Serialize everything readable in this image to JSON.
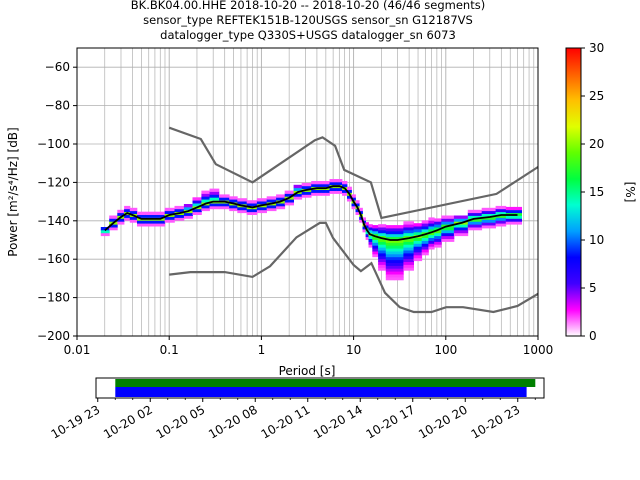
{
  "title_lines": [
    "BK.BK04.00.HHE   2018-10-20 -- 2018-10-20  (46/46 segments)",
    "sensor_type REFTEK151B-120USGS sensor_sn G12187VS",
    "datalogger_type Q330S+USGS datalogger_sn 6073"
  ],
  "chart_data": [
    {
      "type": "heatmap",
      "x_scale": "log",
      "xlabel": "Period [s]",
      "ylabel": "Power [m²/s⁴/Hz] [dB]",
      "xlim": [
        0.01,
        1000
      ],
      "ylim": [
        -200,
        -50
      ],
      "x_ticks": [
        0.01,
        0.1,
        1,
        10,
        100,
        1000
      ],
      "x_tick_labels": [
        "0.01",
        "0.1",
        "1",
        "10",
        "100",
        "1000"
      ],
      "y_ticks": [
        -200,
        -180,
        -160,
        -140,
        -120,
        -100,
        -80,
        -60
      ],
      "y_tick_labels": [
        "−200",
        "−180",
        "−160",
        "−140",
        "−120",
        "−100",
        "−80",
        "−60"
      ],
      "grid": true,
      "colorbar": {
        "label": "[%]",
        "range": [
          0,
          30
        ],
        "ticks": [
          0,
          5,
          10,
          15,
          20,
          25,
          30
        ],
        "colormap": [
          "#ffffff",
          "#ff00ff",
          "#4000ff",
          "#0000ff",
          "#00a0ff",
          "#00ffd0",
          "#00ff40",
          "#60ff00",
          "#e0ff00",
          "#ffc000",
          "#ff6000",
          "#ff0000"
        ]
      },
      "noise_model_high": {
        "x": [
          0.1,
          0.22,
          0.32,
          0.8,
          3.8,
          4.6,
          6.3,
          7.9,
          15.4,
          20,
          354.8,
          1000
        ],
        "y": [
          -91.5,
          -97.4,
          -110.5,
          -120,
          -98,
          -96.5,
          -101,
          -113.5,
          -120,
          -138.5,
          -126,
          -112
        ]
      },
      "noise_model_low": {
        "x": [
          0.1,
          0.17,
          0.4,
          0.8,
          1.24,
          2.4,
          4.3,
          5,
          6,
          10,
          12,
          15.6,
          21.9,
          31.6,
          45,
          70,
          101,
          154,
          328,
          600,
          1000
        ],
        "y": [
          -168,
          -166.7,
          -166.7,
          -169.2,
          -163.7,
          -148.6,
          -141.1,
          -141.1,
          -149,
          -163,
          -166.2,
          -162.1,
          -177.5,
          -185,
          -187.5,
          -187.5,
          -185,
          -185,
          -187.5,
          -184.4,
          -178
        ]
      },
      "median_curve": {
        "x": [
          0.02,
          0.025,
          0.03,
          0.035,
          0.04,
          0.05,
          0.06,
          0.08,
          0.1,
          0.13,
          0.16,
          0.2,
          0.25,
          0.3,
          0.4,
          0.5,
          0.6,
          0.8,
          1,
          1.3,
          1.6,
          2,
          2.5,
          3,
          4,
          5,
          6,
          7,
          8,
          9,
          10,
          11,
          12,
          13,
          14,
          15,
          17,
          20,
          25,
          30,
          40,
          50,
          60,
          70,
          80,
          100,
          150,
          200,
          300,
          400,
          500,
          600
        ],
        "y": [
          -145,
          -141,
          -138,
          -136,
          -137,
          -139,
          -139,
          -139,
          -137,
          -136,
          -135,
          -133,
          -131,
          -130,
          -130,
          -131,
          -132,
          -133,
          -132,
          -131,
          -130,
          -128,
          -125,
          -124,
          -123,
          -123,
          -122,
          -122,
          -123,
          -126,
          -130,
          -133,
          -137,
          -142,
          -145,
          -147,
          -148,
          -149,
          -150,
          -150,
          -149,
          -148,
          -147,
          -146,
          -145,
          -143,
          -141,
          -139,
          -138,
          -137,
          -137,
          -137
        ]
      },
      "x_samples": [
        0.02,
        0.025,
        0.03,
        0.035,
        0.04,
        0.05,
        0.06,
        0.08,
        0.1,
        0.13,
        0.16,
        0.2,
        0.25,
        0.3,
        0.4,
        0.5,
        0.6,
        0.8,
        1,
        1.3,
        1.6,
        2,
        2.5,
        3,
        4,
        5,
        6,
        7,
        8,
        9,
        10,
        11,
        12,
        13,
        14,
        15,
        17,
        20,
        25,
        30,
        40,
        50,
        60,
        70,
        80,
        100,
        150,
        200,
        300,
        400,
        500,
        600
      ],
      "spread_db_below": [
        2,
        3,
        3,
        3,
        3,
        3,
        3,
        3,
        3,
        3,
        3,
        3,
        3,
        3,
        3,
        3,
        3,
        3,
        3,
        3,
        3,
        3,
        3,
        3,
        3,
        3,
        3,
        3,
        3,
        3,
        3,
        3,
        3,
        3,
        4,
        6,
        10,
        16,
        20,
        20,
        16,
        12,
        10,
        8,
        8,
        7,
        6,
        5,
        5,
        5,
        4,
        4
      ],
      "spread_db_above": [
        2,
        3,
        3,
        3,
        3,
        3,
        3,
        3,
        3,
        3,
        4,
        5,
        6,
        6,
        3,
        3,
        3,
        3,
        3,
        3,
        3,
        3,
        4,
        3,
        3,
        3,
        3,
        3,
        3,
        3,
        3,
        3,
        3,
        3,
        4,
        5,
        6,
        7,
        8,
        8,
        8,
        7,
        7,
        7,
        6,
        5,
        4,
        4,
        4,
        4,
        4,
        4
      ]
    },
    {
      "type": "bar",
      "orientation": "horizontal-timeline",
      "x_tick_labels": [
        "10-19 23",
        "10-20 02",
        "10-20 05",
        "10-20 08",
        "10-20 11",
        "10-20 14",
        "10-20 17",
        "10-20 20",
        "10-20 23"
      ],
      "x_ticks_hours_from_1019_23": [
        0,
        3,
        6,
        9,
        12,
        15,
        18,
        21,
        24
      ],
      "xlim_hours_from_1019_23": [
        -0.1,
        25.5
      ],
      "series": [
        {
          "color": "#008000",
          "start": 1,
          "end": 25
        },
        {
          "color": "#0000ff",
          "start": 1,
          "end": 24.5
        }
      ]
    }
  ]
}
